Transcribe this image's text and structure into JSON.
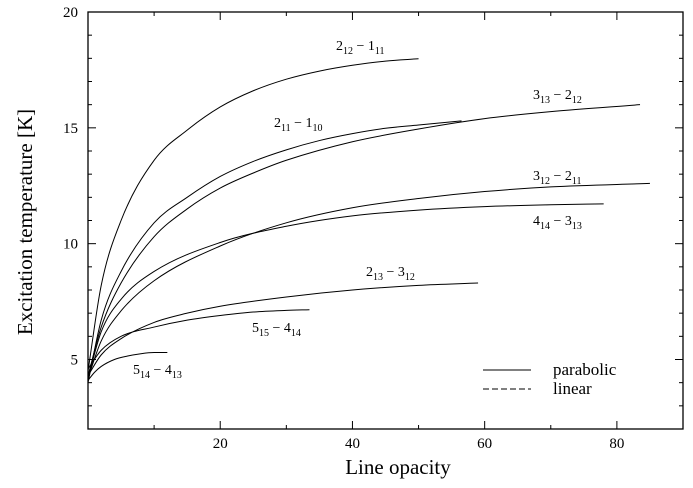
{
  "chart_data": {
    "type": "line",
    "xlabel": "Line opacity",
    "ylabel": "Excitation temperature [K]",
    "xlim": [
      0,
      90
    ],
    "ylim": [
      2,
      20
    ],
    "xticks": [
      20,
      40,
      60,
      80
    ],
    "yticks": [
      5,
      10,
      15,
      20
    ],
    "grid": false,
    "legend": {
      "position": "bottom-right",
      "entries": [
        {
          "label": "parabolic",
          "style": "solid"
        },
        {
          "label": "linear",
          "style": "dashed"
        }
      ]
    },
    "series": [
      {
        "name": "2_12 - 1_11",
        "label": {
          "main": "2",
          "sub1": "12",
          "sep": " − ",
          "main2": "1",
          "sub2": "11"
        },
        "x": [
          0,
          2,
          5,
          10,
          15,
          20,
          25,
          30,
          35,
          40,
          45,
          50
        ],
        "y": [
          4.5,
          8.2,
          11.0,
          13.6,
          14.9,
          15.9,
          16.6,
          17.1,
          17.45,
          17.7,
          17.88,
          17.98
        ]
      },
      {
        "name": "2_11 - 1_10",
        "label": {
          "main": "2",
          "sub1": "11",
          "sep": " − ",
          "main2": "1",
          "sub2": "10"
        },
        "x": [
          0,
          2,
          5,
          10,
          15,
          20,
          25,
          30,
          35,
          40,
          45,
          50,
          56.5
        ],
        "y": [
          4.0,
          6.7,
          8.8,
          10.9,
          12.0,
          12.9,
          13.55,
          14.05,
          14.45,
          14.75,
          14.98,
          15.12,
          15.3
        ]
      },
      {
        "name": "3_13 - 2_12",
        "label": {
          "main": "3",
          "sub1": "13",
          "sep": " − ",
          "main2": "2",
          "sub2": "12"
        },
        "x": [
          0,
          2,
          5,
          10,
          15,
          20,
          25,
          30,
          40,
          50,
          60,
          70,
          83.5
        ],
        "y": [
          4.3,
          6.4,
          8.3,
          10.3,
          11.5,
          12.4,
          13.05,
          13.6,
          14.4,
          14.95,
          15.4,
          15.7,
          16.0
        ]
      },
      {
        "name": "3_12 - 2_11",
        "label": {
          "main": "3",
          "sub1": "12",
          "sep": " − ",
          "main2": "2",
          "sub2": "11"
        },
        "x": [
          0,
          2,
          5,
          10,
          20,
          30,
          40,
          50,
          60,
          70,
          85
        ],
        "y": [
          4.2,
          5.8,
          7.1,
          8.4,
          9.9,
          10.9,
          11.55,
          11.95,
          12.25,
          12.45,
          12.6
        ]
      },
      {
        "name": "4_14 - 3_13",
        "label": {
          "main": "4",
          "sub1": "14",
          "sep": " − ",
          "main2": "3",
          "sub2": "13"
        },
        "x": [
          0,
          2,
          5,
          10,
          20,
          30,
          40,
          50,
          60,
          70,
          78
        ],
        "y": [
          4.2,
          6.2,
          7.6,
          8.8,
          10.05,
          10.75,
          11.2,
          11.45,
          11.6,
          11.68,
          11.72
        ]
      },
      {
        "name": "2_13 - 3_12",
        "label": {
          "main": "2",
          "sub1": "13",
          "sep": " − ",
          "main2": "3",
          "sub2": "12"
        },
        "x": [
          0,
          2,
          5,
          10,
          15,
          20,
          30,
          40,
          50,
          59
        ],
        "y": [
          4.3,
          5.2,
          5.9,
          6.6,
          7.0,
          7.3,
          7.7,
          8.0,
          8.2,
          8.3
        ]
      },
      {
        "name": "5_15 - 4_14",
        "label": {
          "main": "5",
          "sub1": "15",
          "sep": " − ",
          "main2": "4",
          "sub2": "14"
        },
        "x": [
          0,
          2,
          5,
          10,
          15,
          20,
          25,
          30,
          33.5
        ],
        "y": [
          4.6,
          5.4,
          6.0,
          6.4,
          6.7,
          6.9,
          7.05,
          7.12,
          7.15
        ]
      },
      {
        "name": "5_14 - 4_13",
        "label": {
          "main": "5",
          "sub1": "14",
          "sep": " − ",
          "main2": "4",
          "sub2": "13"
        },
        "x": [
          0,
          1,
          2,
          4,
          6,
          8,
          10,
          12
        ],
        "y": [
          4.1,
          4.45,
          4.7,
          5.0,
          5.15,
          5.25,
          5.3,
          5.3
        ]
      }
    ]
  }
}
